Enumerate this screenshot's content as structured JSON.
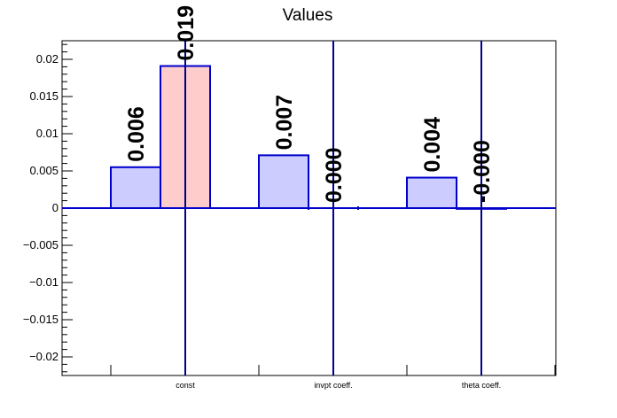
{
  "chart_data": {
    "type": "bar",
    "title": "Values",
    "categories": [
      "const",
      "invpt coeff.",
      "theta coeff."
    ],
    "series": [
      {
        "values": [
          0.0055,
          0.0071,
          0.0041
        ],
        "labels": [
          "0.006",
          "0.007",
          "0.004"
        ],
        "color": "#ccccff"
      },
      {
        "values": [
          0.0191,
          0.0,
          -0.0001
        ],
        "labels": [
          "0.019",
          "0.000",
          "-0.000"
        ],
        "color": "#ffcccc"
      }
    ],
    "ylim": [
      -0.0225,
      0.0225
    ],
    "yticks": [
      -0.02,
      -0.015,
      -0.01,
      -0.005,
      0,
      0.005,
      0.01,
      0.015,
      0.02
    ],
    "ytick_labels": [
      "−0.02",
      "−0.015",
      "−0.01",
      "−0.005",
      "0",
      "0.005",
      "0.01",
      "0.015",
      "0.02"
    ],
    "grid": false,
    "outline_color": "#0000cc",
    "line_color": "#00008b"
  }
}
